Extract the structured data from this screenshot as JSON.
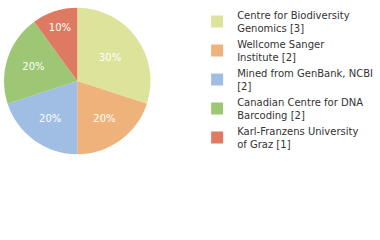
{
  "chart_data": {
    "type": "pie",
    "categories": [
      "Centre for Biodiversity Genomics [3]",
      "Wellcome Sanger Institute [2]",
      "Mined from GenBank, NCBI [2]",
      "Canadian Centre for DNA Barcoding [2]",
      "Karl-Franzens University of Graz [1]"
    ],
    "values": [
      30,
      20,
      20,
      20,
      10
    ],
    "value_labels": [
      "30%",
      "20%",
      "20%",
      "20%",
      "10%"
    ],
    "colors": [
      "#dde39b",
      "#f0b27b",
      "#a0bde3",
      "#9dc774",
      "#df7a62"
    ],
    "data_labels": true,
    "legend": "top right"
  }
}
